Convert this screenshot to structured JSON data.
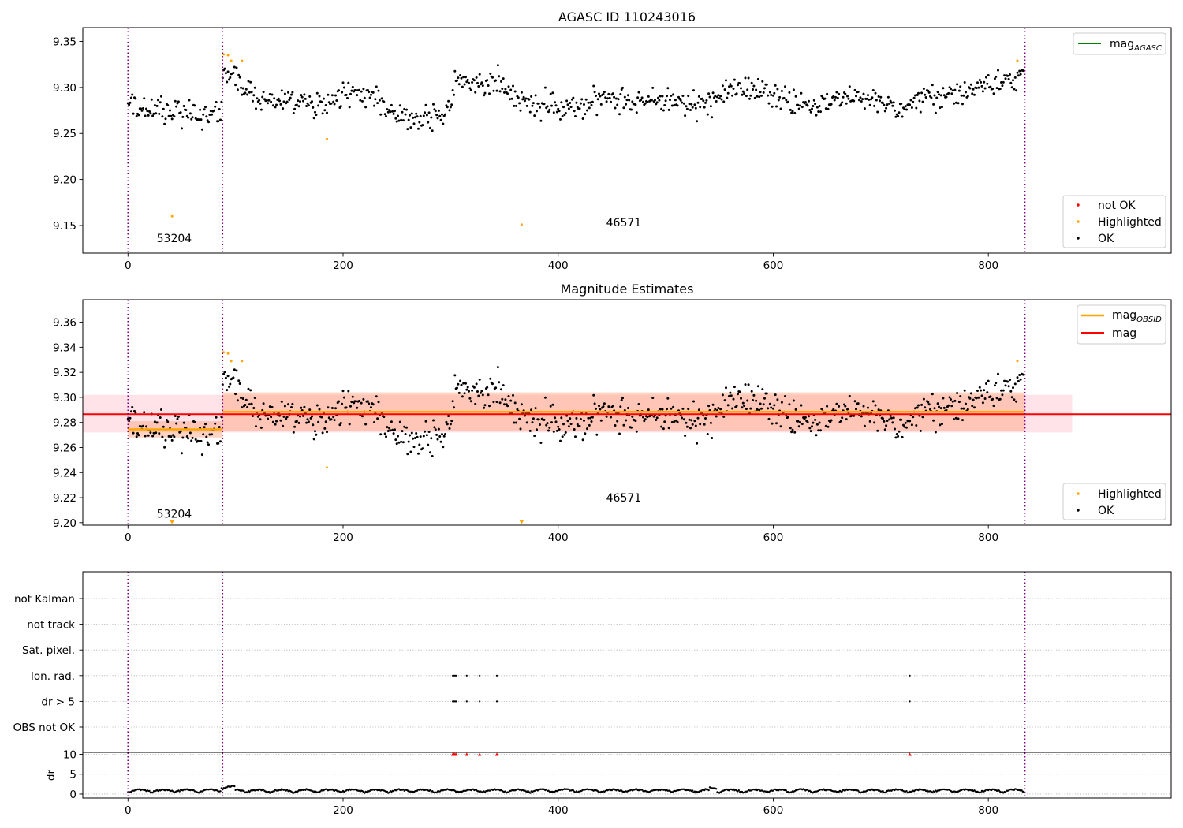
{
  "figure": {
    "background": "#ffffff",
    "colors": {
      "ok": "#000000",
      "highlighted": "#ffa500",
      "not_ok": "#ff0000",
      "mag_agasc": "#008000",
      "mag_obsid": "#ffa500",
      "mag": "#ff0000",
      "obsid_divider": "#800080",
      "mag_band": "#ffc0cb",
      "obsid_band": "#ffa07a"
    }
  },
  "chart_data": [
    {
      "id": "agasc_panel",
      "type": "scatter",
      "title": "AGASC ID 110243016",
      "xlim": [
        -42,
        970
      ],
      "ylim": [
        9.12,
        9.365
      ],
      "x_ticks": [
        0,
        200,
        400,
        600,
        800
      ],
      "y_ticks": [
        "9.15",
        "9.20",
        "9.25",
        "9.30",
        "9.35"
      ],
      "grid": false,
      "obsid_boundaries": [
        0,
        88,
        834
      ],
      "obsid_labels": [
        {
          "text": "53204",
          "x": 43,
          "y": 9.132
        },
        {
          "text": "46571",
          "x": 461,
          "y": 9.149
        }
      ],
      "legend_lines": {
        "placement": "top-right",
        "entries": [
          {
            "label": "mag",
            "subscript": "AGASC",
            "color": "#008000"
          }
        ]
      },
      "legend_points": {
        "placement": "lower-right",
        "entries": [
          {
            "label": "not OK",
            "color": "#ff0000"
          },
          {
            "label": "Highlighted",
            "color": "#ffa500"
          },
          {
            "label": "OK",
            "color": "#000000"
          }
        ]
      },
      "series": [
        {
          "name": "OK",
          "color": "#000000",
          "generated": "ok",
          "n_points": 834,
          "y_range": [
            9.25,
            9.326
          ]
        },
        {
          "name": "Highlighted",
          "color": "#ffa500",
          "points": [
            [
              41,
              9.16
            ],
            [
              89,
              9.336
            ],
            [
              93,
              9.335
            ],
            [
              96,
              9.329
            ],
            [
              106,
              9.329
            ],
            [
              185,
              9.244
            ],
            [
              366,
              9.151
            ],
            [
              827,
              9.329
            ]
          ]
        }
      ]
    },
    {
      "id": "magnitude_panel",
      "type": "scatter",
      "title": "Magnitude Estimates",
      "xlim": [
        -42,
        970
      ],
      "ylim": [
        9.198,
        9.378
      ],
      "x_ticks": [
        0,
        200,
        400,
        600,
        800
      ],
      "y_ticks": [
        "9.20",
        "9.22",
        "9.24",
        "9.26",
        "9.28",
        "9.30",
        "9.32",
        "9.34",
        "9.36"
      ],
      "grid": false,
      "obsid_boundaries": [
        0,
        88,
        834
      ],
      "obsid_labels": [
        {
          "text": "53204",
          "x": 43,
          "y": 9.204
        },
        {
          "text": "46571",
          "x": 461,
          "y": 9.217
        }
      ],
      "bands": [
        {
          "name": "mag band",
          "x": [
            -42,
            878
          ],
          "y": [
            9.272,
            9.302
          ],
          "color": "#ffc0cb",
          "opacity": 0.45
        },
        {
          "name": "mag_OBSID band 53204",
          "x": [
            0,
            88
          ],
          "y": [
            9.268,
            9.281
          ],
          "color": "#ffa07a",
          "opacity": 0.45
        },
        {
          "name": "mag_OBSID band 46571",
          "x": [
            88,
            834
          ],
          "y": [
            9.273,
            9.304
          ],
          "color": "#ffa07a",
          "opacity": 0.45
        }
      ],
      "lines": [
        {
          "name": "mag",
          "color": "#ff0000",
          "x": [
            -42,
            970
          ],
          "y": 9.2866
        },
        {
          "name": "mag_OBSID 53204",
          "color": "#ffa500",
          "x": [
            0,
            88
          ],
          "y": 9.2745
        },
        {
          "name": "mag_OBSID 46571",
          "color": "#ffa500",
          "x": [
            88,
            834
          ],
          "y": 9.2885
        }
      ],
      "legend_lines": {
        "placement": "top-right",
        "entries": [
          {
            "label": "mag",
            "subscript": "OBSID",
            "color": "#ffa500"
          },
          {
            "label": "mag",
            "subscript": "",
            "color": "#ff0000"
          }
        ]
      },
      "legend_points": {
        "placement": "lower-right",
        "entries": [
          {
            "label": "Highlighted",
            "color": "#ffa500"
          },
          {
            "label": "OK",
            "color": "#000000"
          }
        ]
      },
      "series": [
        {
          "name": "OK",
          "color": "#000000",
          "generated": "ok",
          "n_points": 834,
          "y_range": [
            9.25,
            9.326
          ]
        },
        {
          "name": "Highlighted",
          "color": "#ffa500",
          "points": [
            [
              89,
              9.336
            ],
            [
              93,
              9.335
            ],
            [
              96,
              9.329
            ],
            [
              106,
              9.329
            ],
            [
              185,
              9.244
            ],
            [
              827,
              9.329
            ]
          ]
        },
        {
          "name": "Highlighted (below axis)",
          "color": "#ffa500",
          "marker": "triangle-down",
          "points": [
            [
              41,
              9.2
            ],
            [
              366,
              9.2
            ]
          ]
        }
      ]
    },
    {
      "id": "flags_panel",
      "type": "scatter",
      "xlim": [
        -42,
        970
      ],
      "x_ticks": [
        0,
        200,
        400,
        600,
        800
      ],
      "grid": "horizontal",
      "obsid_boundaries": [
        0,
        88,
        834
      ],
      "flag_rows": [
        "not Kalman",
        "not track",
        "Sat. pixel.",
        "Ion. rad.",
        "dr > 5",
        "OBS not OK"
      ],
      "flag_points": [
        {
          "flag": "Ion. rad.",
          "x": [
            302,
            303,
            304,
            305,
            315,
            327,
            343,
            727
          ]
        },
        {
          "flag": "dr > 5",
          "x": [
            302,
            303,
            304,
            305,
            315,
            327,
            343,
            727
          ]
        }
      ],
      "dr": {
        "ylabel": "dr",
        "ylim": [
          -1,
          10.5
        ],
        "y_ticks": [
          "0",
          "5",
          "10"
        ],
        "generated": "dr",
        "n_points": 834,
        "y_range": [
          0,
          2.2
        ],
        "high_points": {
          "color": "#ff0000",
          "x": [
            302,
            303,
            304,
            305,
            315,
            327,
            343,
            727
          ],
          "y": 10
        }
      }
    }
  ]
}
